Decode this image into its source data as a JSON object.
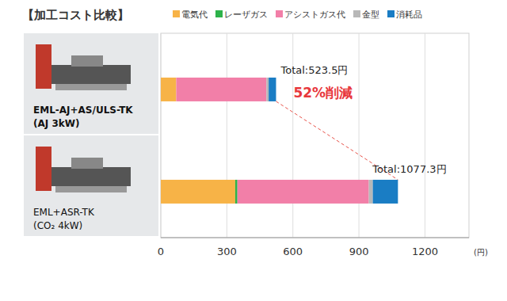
{
  "chart_data": {
    "type": "bar",
    "orientation": "horizontal",
    "stacked": true,
    "title": "【加工コスト比較】",
    "categories": [
      "EML-AJ+AS/ULS-TK\n(AJ 3kW)",
      "EML+ASR-TK\n(CO₂ 4kW)"
    ],
    "series": [
      {
        "name": "電気代",
        "color": "#f7b347",
        "values": [
          70,
          338
        ]
      },
      {
        "name": "レーザガス",
        "color": "#2db24a",
        "values": [
          0,
          10
        ]
      },
      {
        "name": "アシストガス代",
        "color": "#f27fa8",
        "values": [
          410,
          597
        ]
      },
      {
        "name": "金型",
        "color": "#b8b8b8",
        "values": [
          10,
          18
        ]
      },
      {
        "name": "消耗品",
        "color": "#1a7dc4",
        "values": [
          33.5,
          114.3
        ]
      }
    ],
    "annotations": [
      "Total:523.5円",
      "52%削減",
      "Total:1077.3円"
    ],
    "x_label": "(円)",
    "xlim": [
      0,
      1400
    ],
    "xticks": [
      0,
      300,
      600,
      900,
      1200
    ],
    "grid": true,
    "legend": "top"
  }
}
